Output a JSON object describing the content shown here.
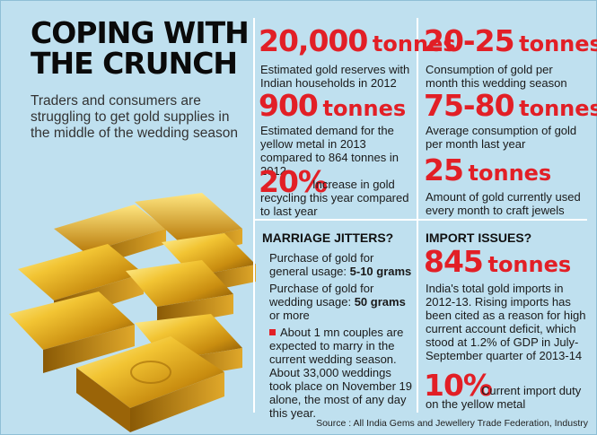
{
  "headline": {
    "line1": "COPING WITH",
    "line2": "THE CRUNCH"
  },
  "intro": "Traders and consumers are struggling to get gold supplies in the middle of the wedding season",
  "stats_left": [
    {
      "number": "20,000",
      "unit": "tonnes",
      "desc": "Estimated gold reserves with Indian households in 2012"
    },
    {
      "number": "900",
      "unit": "tonnes",
      "desc": "Estimated demand for the yellow metal in 2013 compared to 864 tonnes in 2012"
    },
    {
      "number": "20%",
      "desc": "Increase in gold recycling this year compared to last year"
    }
  ],
  "stats_right": [
    {
      "number": "20-25",
      "unit": "tonnes",
      "desc": "Consumption of gold per month this wedding season"
    },
    {
      "number": "75-80",
      "unit": "tonnes",
      "desc": "Average consumption of gold per month last year"
    },
    {
      "number": "25",
      "unit": "tonnes",
      "desc": "Amount of gold currently used every month to craft jewels"
    }
  ],
  "marriage": {
    "heading": "MARRIAGE JITTERS?",
    "item1_text": "Purchase of gold for general usage:",
    "item1_value": "5-10 grams",
    "item2_text": "Purchase of gold for wedding usage:",
    "item2_value": "50 grams",
    "item2_suffix": "or more",
    "note": "About 1 mn couples are expected to marry in the current wedding season. About 33,000 weddings took place on November 19 alone, the most of any day this year."
  },
  "imports": {
    "heading": "IMPORT ISSUES?",
    "number": "845",
    "unit": "tonnes",
    "desc": "India's total gold imports in 2012-13. Rising imports has been cited as a reason for high current account deficit, which stood at 1.2% of GDP in July-September quarter of 2013-14",
    "duty_number": "10%",
    "duty_desc": "Current import duty on the yellow metal"
  },
  "source": "Source : All India Gems and Jewellery Trade Federation, Industry",
  "colors": {
    "background": "#bfe0ef",
    "accent": "#e21f26",
    "divider": "#ffffff"
  }
}
